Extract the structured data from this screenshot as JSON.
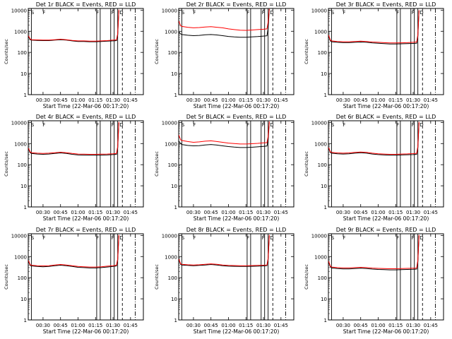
{
  "page": {
    "title": ""
  },
  "shared": {
    "xlabel": "Start Time (22-Mar-06 00:17:20)",
    "ylabel": "Counts/sec",
    "y_ticks": [
      {
        "value": 1,
        "label": "1"
      },
      {
        "value": 10,
        "label": "10"
      },
      {
        "value": 100,
        "label": "100"
      },
      {
        "value": 1000,
        "label": "1000"
      },
      {
        "value": 10000,
        "label": "10000"
      }
    ],
    "x_ticks": [
      {
        "value": 30,
        "label": "00:30"
      },
      {
        "value": 45,
        "label": "00:45"
      },
      {
        "value": 60,
        "label": "01:00"
      },
      {
        "value": 75,
        "label": "01:15"
      },
      {
        "value": 90,
        "label": "01:30"
      },
      {
        "value": 105,
        "label": "01:45"
      }
    ],
    "xlim": [
      17.33,
      116
    ],
    "ylim": [
      1,
      12000
    ],
    "y_scale": "log",
    "marker_labels": [
      "S",
      "F",
      "F",
      "F",
      "D"
    ],
    "colors": {
      "events": "#000000",
      "lld": "#ff0000"
    }
  },
  "chart_data": [
    {
      "type": "line",
      "title": "Det 1r BLACK = Events, RED = LLD",
      "xlabel": "Start Time (22-Mar-06 00:17:20)",
      "ylabel": "Counts/sec",
      "ylim": [
        1,
        12000
      ],
      "y_scale": "log",
      "x": [
        17.5,
        19,
        20,
        25,
        30,
        35,
        40,
        45,
        50,
        55,
        60,
        65,
        70,
        75,
        80,
        85,
        90,
        93,
        94,
        95
      ],
      "series": [
        {
          "name": "Events",
          "color": "#000000",
          "values": [
            550,
            400,
            380,
            370,
            360,
            360,
            380,
            400,
            380,
            350,
            330,
            330,
            320,
            320,
            330,
            340,
            350,
            360,
            700,
            9500
          ]
        },
        {
          "name": "LLD",
          "color": "#ff0000",
          "values": [
            600,
            430,
            400,
            390,
            380,
            380,
            400,
            420,
            400,
            370,
            350,
            350,
            340,
            340,
            350,
            360,
            380,
            390,
            800,
            10500
          ]
        }
      ],
      "events": {
        "solid": [
          20,
          76,
          79,
          88,
          91,
          94
        ],
        "dashed": [
          98
        ],
        "dashdot": [
          109
        ]
      }
    },
    {
      "type": "line",
      "title": "Det 2r BLACK = Events, RED = LLD",
      "xlabel": "Start Time (22-Mar-06 00:17:20)",
      "ylabel": "Counts/sec",
      "ylim": [
        1,
        12000
      ],
      "y_scale": "log",
      "x": [
        17.5,
        19,
        20,
        25,
        30,
        35,
        40,
        45,
        50,
        55,
        60,
        65,
        70,
        75,
        80,
        85,
        90,
        93,
        94,
        95
      ],
      "series": [
        {
          "name": "Events",
          "color": "#000000",
          "values": [
            900,
            750,
            700,
            650,
            620,
            640,
            680,
            700,
            670,
            620,
            570,
            540,
            520,
            520,
            540,
            560,
            590,
            610,
            1400,
            11000
          ]
        },
        {
          "name": "LLD",
          "color": "#ff0000",
          "values": [
            3000,
            1800,
            1700,
            1550,
            1450,
            1500,
            1600,
            1650,
            1550,
            1450,
            1300,
            1200,
            1120,
            1100,
            1150,
            1200,
            1250,
            1300,
            2800,
            11500
          ]
        }
      ],
      "events": {
        "solid": [
          20,
          76,
          79,
          88,
          91,
          94
        ],
        "dashed": [
          98
        ],
        "dashdot": [
          109
        ]
      }
    },
    {
      "type": "line",
      "title": "Det 3r BLACK = Events, RED = LLD",
      "xlabel": "Start Time (22-Mar-06 00:17:20)",
      "ylabel": "Counts/sec",
      "ylim": [
        1,
        12000
      ],
      "y_scale": "log",
      "x": [
        17.5,
        19,
        20,
        25,
        30,
        35,
        40,
        45,
        50,
        55,
        60,
        65,
        70,
        75,
        80,
        85,
        90,
        93,
        94,
        95
      ],
      "series": [
        {
          "name": "Events",
          "color": "#000000",
          "values": [
            600,
            350,
            320,
            300,
            290,
            290,
            300,
            310,
            300,
            280,
            270,
            260,
            250,
            250,
            255,
            260,
            265,
            270,
            600,
            9500
          ]
        },
        {
          "name": "LLD",
          "color": "#ff0000",
          "values": [
            650,
            380,
            350,
            330,
            320,
            320,
            330,
            340,
            330,
            310,
            300,
            290,
            280,
            280,
            285,
            290,
            300,
            310,
            700,
            10000
          ]
        }
      ],
      "events": {
        "solid": [
          20,
          76,
          79,
          88,
          91,
          94
        ],
        "dashed": [
          98
        ],
        "dashdot": [
          109
        ]
      }
    },
    {
      "type": "line",
      "title": "Det 4r BLACK = Events, RED = LLD",
      "xlabel": "Start Time (22-Mar-06 00:17:20)",
      "ylabel": "Counts/sec",
      "ylim": [
        1,
        12000
      ],
      "y_scale": "log",
      "x": [
        17.5,
        19,
        20,
        25,
        30,
        35,
        40,
        45,
        50,
        55,
        60,
        65,
        70,
        75,
        80,
        85,
        90,
        93,
        94,
        95
      ],
      "series": [
        {
          "name": "Events",
          "color": "#000000",
          "values": [
            550,
            370,
            340,
            320,
            310,
            320,
            340,
            360,
            340,
            310,
            290,
            285,
            280,
            280,
            285,
            290,
            300,
            310,
            650,
            9500
          ]
        },
        {
          "name": "LLD",
          "color": "#ff0000",
          "values": [
            600,
            400,
            370,
            350,
            340,
            350,
            370,
            390,
            370,
            340,
            320,
            315,
            310,
            310,
            315,
            320,
            330,
            340,
            750,
            10500
          ]
        }
      ],
      "events": {
        "solid": [
          20,
          76,
          79,
          88,
          91,
          94
        ],
        "dashed": [
          98
        ],
        "dashdot": [
          109
        ]
      }
    },
    {
      "type": "line",
      "title": "Det 5r BLACK = Events, RED = LLD",
      "xlabel": "Start Time (22-Mar-06 00:17:20)",
      "ylabel": "Counts/sec",
      "ylim": [
        1,
        12000
      ],
      "y_scale": "log",
      "x": [
        17.5,
        19,
        20,
        25,
        30,
        35,
        40,
        45,
        50,
        55,
        60,
        65,
        70,
        75,
        80,
        85,
        90,
        93,
        94,
        95
      ],
      "series": [
        {
          "name": "Events",
          "color": "#000000",
          "values": [
            1300,
            1000,
            900,
            820,
            780,
            800,
            860,
            900,
            850,
            780,
            720,
            680,
            650,
            650,
            670,
            700,
            740,
            760,
            1500,
            10000
          ]
        },
        {
          "name": "LLD",
          "color": "#ff0000",
          "values": [
            2500,
            1500,
            1400,
            1250,
            1150,
            1200,
            1300,
            1350,
            1250,
            1150,
            1050,
            1000,
            950,
            950,
            980,
            1020,
            1080,
            1100,
            2200,
            11000
          ]
        }
      ],
      "events": {
        "solid": [
          20,
          76,
          79,
          88,
          91,
          94
        ],
        "dashed": [
          98
        ],
        "dashdot": [
          109
        ]
      }
    },
    {
      "type": "line",
      "title": "Det 6r BLACK = Events, RED = LLD",
      "xlabel": "Start Time (22-Mar-06 00:17:20)",
      "ylabel": "Counts/sec",
      "ylim": [
        1,
        12000
      ],
      "y_scale": "log",
      "x": [
        17.5,
        19,
        20,
        25,
        30,
        35,
        40,
        45,
        50,
        55,
        60,
        65,
        70,
        75,
        80,
        85,
        90,
        93,
        94,
        95
      ],
      "series": [
        {
          "name": "Events",
          "color": "#000000",
          "values": [
            600,
            380,
            350,
            330,
            320,
            330,
            350,
            370,
            350,
            320,
            300,
            290,
            280,
            280,
            290,
            295,
            300,
            310,
            650,
            9500
          ]
        },
        {
          "name": "LLD",
          "color": "#ff0000",
          "values": [
            650,
            410,
            380,
            360,
            350,
            360,
            380,
            400,
            380,
            350,
            330,
            320,
            310,
            310,
            320,
            325,
            335,
            345,
            750,
            10500
          ]
        }
      ],
      "events": {
        "solid": [
          20,
          76,
          79,
          88,
          91,
          94
        ],
        "dashed": [
          98
        ],
        "dashdot": [
          109
        ]
      }
    },
    {
      "type": "line",
      "title": "Det 7r BLACK = Events, RED = LLD",
      "xlabel": "Start Time (22-Mar-06 00:17:20)",
      "ylabel": "Counts/sec",
      "ylim": [
        1,
        12000
      ],
      "y_scale": "log",
      "x": [
        17.5,
        19,
        20,
        25,
        30,
        35,
        40,
        45,
        50,
        55,
        60,
        65,
        70,
        75,
        80,
        85,
        90,
        93,
        94,
        95
      ],
      "series": [
        {
          "name": "Events",
          "color": "#000000",
          "values": [
            600,
            380,
            360,
            340,
            330,
            340,
            370,
            390,
            370,
            340,
            310,
            300,
            290,
            290,
            300,
            320,
            340,
            360,
            700,
            9500
          ]
        },
        {
          "name": "LLD",
          "color": "#ff0000",
          "values": [
            650,
            410,
            390,
            370,
            360,
            370,
            400,
            420,
            400,
            370,
            340,
            330,
            320,
            320,
            330,
            350,
            370,
            390,
            800,
            10500
          ]
        }
      ],
      "events": {
        "solid": [
          20,
          76,
          79,
          88,
          91,
          94
        ],
        "dashed": [
          98
        ],
        "dashdot": [
          109
        ]
      }
    },
    {
      "type": "line",
      "title": "Det 8r BLACK = Events, RED = LLD",
      "xlabel": "Start Time (22-Mar-06 00:17:20)",
      "ylabel": "Counts/sec",
      "ylim": [
        1,
        12000
      ],
      "y_scale": "log",
      "x": [
        17.5,
        19,
        20,
        25,
        30,
        35,
        40,
        45,
        50,
        55,
        60,
        65,
        70,
        75,
        80,
        85,
        90,
        93,
        94,
        95
      ],
      "series": [
        {
          "name": "Events",
          "color": "#000000",
          "values": [
            700,
            420,
            400,
            380,
            370,
            380,
            400,
            420,
            400,
            370,
            350,
            345,
            340,
            340,
            345,
            350,
            360,
            370,
            750,
            9500
          ]
        },
        {
          "name": "LLD",
          "color": "#ff0000",
          "values": [
            750,
            450,
            430,
            410,
            400,
            410,
            430,
            450,
            430,
            400,
            380,
            375,
            370,
            370,
            375,
            380,
            390,
            400,
            850,
            10500
          ]
        }
      ],
      "events": {
        "solid": [
          20,
          76,
          79,
          88,
          91,
          94
        ],
        "dashed": [
          98
        ],
        "dashdot": [
          109
        ]
      }
    },
    {
      "type": "line",
      "title": "Det 9r BLACK = Events, RED = LLD",
      "xlabel": "Start Time (22-Mar-06 00:17:20)",
      "ylabel": "Counts/sec",
      "ylim": [
        1,
        12000
      ],
      "y_scale": "log",
      "x": [
        17.5,
        19,
        20,
        25,
        30,
        35,
        40,
        45,
        50,
        55,
        60,
        65,
        70,
        75,
        80,
        85,
        90,
        93,
        94,
        95
      ],
      "series": [
        {
          "name": "Events",
          "color": "#000000",
          "values": [
            550,
            320,
            290,
            270,
            260,
            260,
            270,
            280,
            270,
            255,
            245,
            240,
            235,
            235,
            240,
            245,
            250,
            255,
            600,
            9500
          ]
        },
        {
          "name": "LLD",
          "color": "#ff0000",
          "values": [
            600,
            350,
            320,
            300,
            290,
            290,
            300,
            310,
            300,
            285,
            275,
            270,
            265,
            265,
            270,
            275,
            280,
            285,
            700,
            10500
          ]
        }
      ],
      "events": {
        "solid": [
          20,
          76,
          79,
          88,
          91,
          94
        ],
        "dashed": [
          98
        ],
        "dashdot": [
          109
        ]
      }
    }
  ]
}
